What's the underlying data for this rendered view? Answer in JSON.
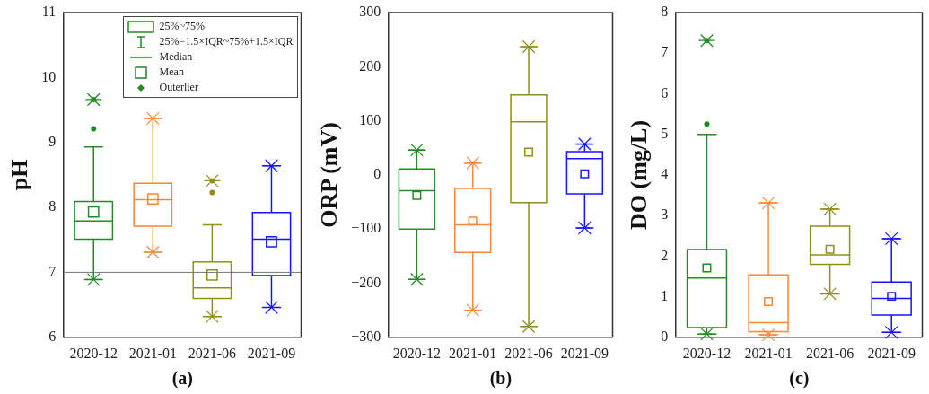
{
  "chart_data": [
    {
      "type": "box",
      "xlabel": "(a)",
      "ylabel": "pH",
      "categories": [
        "2020-12",
        "2021-01",
        "2021-06",
        "2021-09"
      ],
      "colors": [
        "#228b22",
        "#f7883a",
        "#8f8f1a",
        "#1414ff"
      ],
      "boxes": [
        {
          "low": 6.89,
          "q1": 7.51,
          "median": 7.79,
          "q3": 8.09,
          "high": 8.93,
          "mean": 7.93,
          "outliers": [
            9.21,
            9.66
          ]
        },
        {
          "low": 7.31,
          "q1": 7.71,
          "median": 8.12,
          "q3": 8.37,
          "high": 9.37,
          "mean": 8.13
        },
        {
          "low": 6.32,
          "q1": 6.6,
          "median": 6.76,
          "q3": 7.16,
          "high": 7.73,
          "mean": 6.96,
          "outliers": [
            8.23,
            8.41
          ]
        },
        {
          "low": 6.46,
          "q1": 6.95,
          "median": 7.51,
          "q3": 7.92,
          "high": 8.64,
          "mean": 7.47
        }
      ],
      "ylim": [
        6,
        11
      ],
      "yticks": [
        6,
        7,
        8,
        9,
        10,
        11
      ],
      "ref_lines": [
        {
          "axis": "y",
          "value": 7,
          "color": "#777777"
        }
      ],
      "annotations": [
        "25%~75%",
        "25%−1.5×IQR~75%+1.5×IQR",
        "Median",
        "Mean",
        "Outerlier"
      ]
    },
    {
      "type": "box",
      "xlabel": "(b)",
      "ylabel": "ORP (mV)",
      "categories": [
        "2020-12",
        "2021-01",
        "2021-06",
        "2021-09"
      ],
      "colors": [
        "#228b22",
        "#f7883a",
        "#8f8f1a",
        "#1414ff"
      ],
      "boxes": [
        {
          "low": -193,
          "q1": -100,
          "median": -29,
          "q3": 11,
          "high": 46,
          "mean": -38
        },
        {
          "low": -250,
          "q1": -143,
          "median": -92,
          "q3": -25,
          "high": 22,
          "mean": -85
        },
        {
          "low": -280,
          "q1": -51,
          "median": 98,
          "q3": 148,
          "high": 237,
          "mean": 42
        },
        {
          "low": -98,
          "q1": -35,
          "median": 30,
          "q3": 43,
          "high": 57,
          "mean": 2
        }
      ],
      "ylim": [
        -300,
        300
      ],
      "yticks": [
        -300,
        -200,
        -100,
        0,
        100,
        200,
        300
      ]
    },
    {
      "type": "box",
      "xlabel": "(c)",
      "ylabel": "DO (mg/L)",
      "categories": [
        "2020-12",
        "2021-01",
        "2021-06",
        "2021-09"
      ],
      "colors": [
        "#228b22",
        "#f7883a",
        "#8f8f1a",
        "#1414ff"
      ],
      "boxes": [
        {
          "low": 0.08,
          "q1": 0.24,
          "median": 1.46,
          "q3": 2.16,
          "high": 5.0,
          "mean": 1.71,
          "outliers": [
            5.25,
            7.31
          ]
        },
        {
          "low": 0.06,
          "q1": 0.14,
          "median": 0.36,
          "q3": 1.54,
          "high": 3.31,
          "mean": 0.88
        },
        {
          "low": 1.07,
          "q1": 1.8,
          "median": 2.03,
          "q3": 2.74,
          "high": 3.16,
          "mean": 2.17
        },
        {
          "low": 0.12,
          "q1": 0.55,
          "median": 0.96,
          "q3": 1.36,
          "high": 2.43,
          "mean": 1.01
        }
      ],
      "ylim": [
        0,
        8
      ],
      "yticks": [
        0,
        1,
        2,
        3,
        4,
        5,
        6,
        7,
        8
      ]
    }
  ]
}
